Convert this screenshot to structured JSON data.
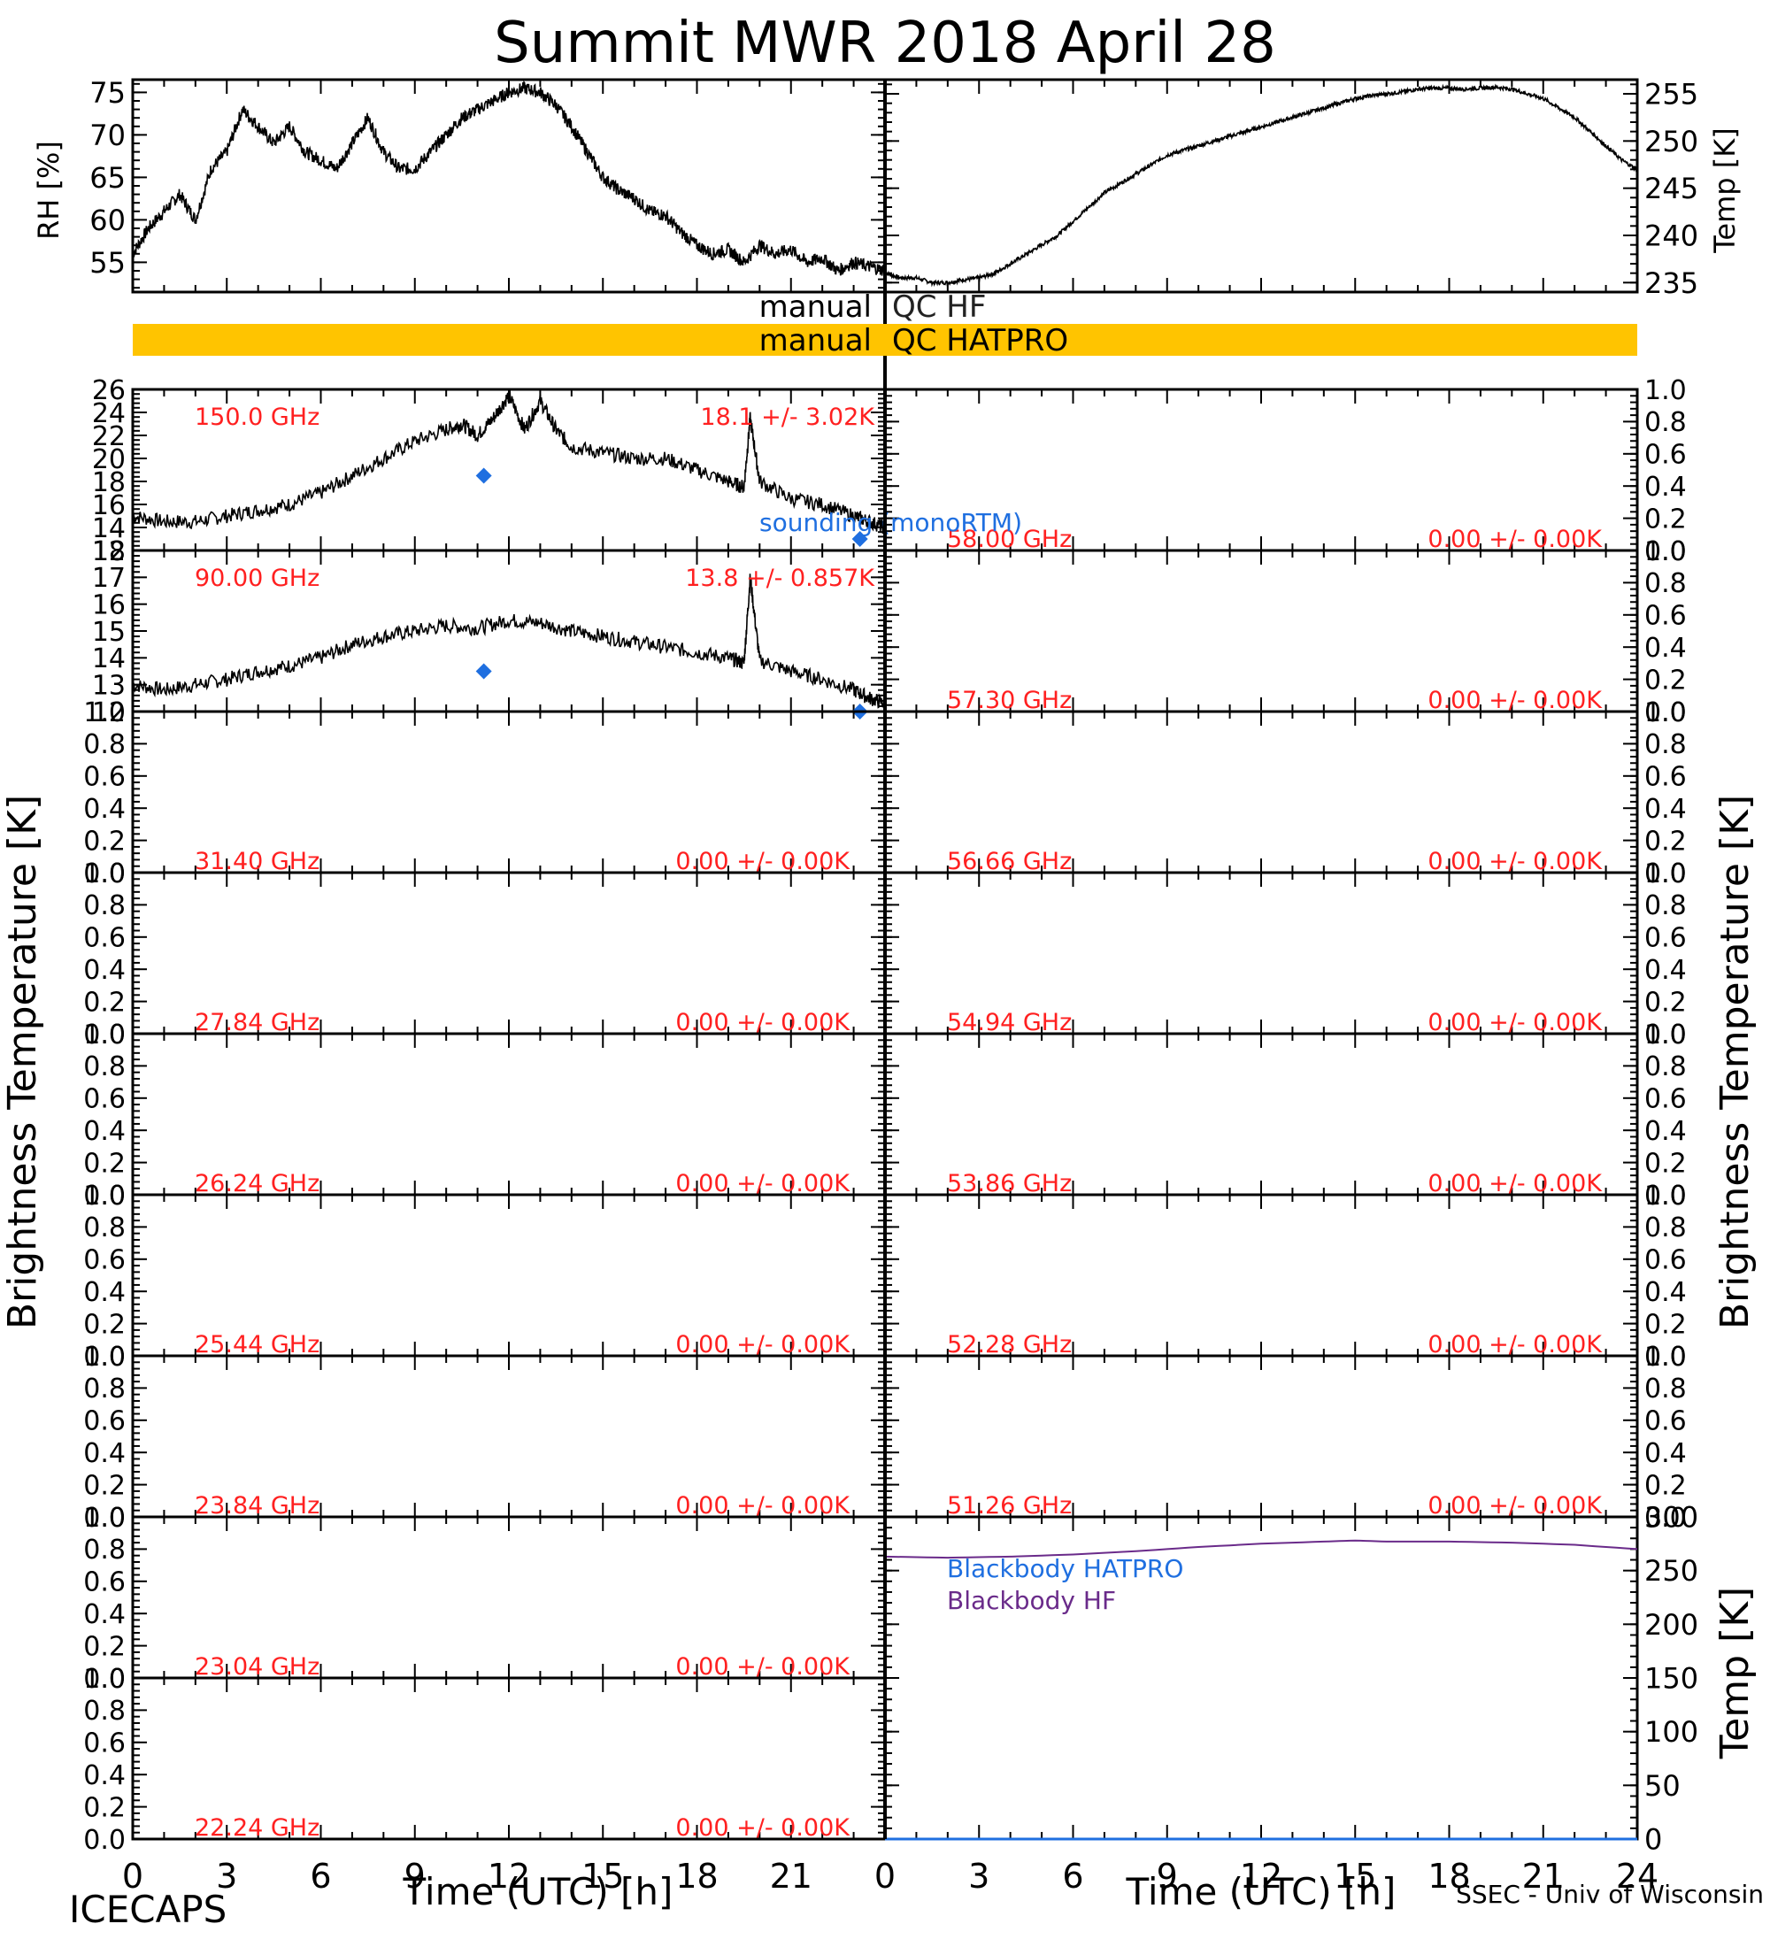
{
  "title": "Summit MWR 2018 April 28",
  "footer": {
    "left": "ICECAPS",
    "right": "SSEC - Univ of Wisconsin",
    "xlabel_left": "Time (UTC) [h]",
    "xlabel_right": "Time (UTC) [h]"
  },
  "axis_labels": {
    "rh": "RH [%]",
    "temp": "Temp [K]",
    "tb_left": "Brightness Temperature [K]",
    "tb_right": "Brightness Temperature [K]",
    "bb_temp": "Temp [K]"
  },
  "qc": {
    "hf_label": "manual QC HF",
    "hatpro_label": "manual QC HATPRO",
    "hatpro_color": "#ffc400"
  },
  "legend": {
    "sounding": "sounding (monoRTM)",
    "bb_hatpro": "Blackbody HATPRO",
    "bb_hf": "Blackbody HF"
  },
  "colors": {
    "label_red": "#ff2020",
    "sounding_blue": "#1f6fe0",
    "bb_purple": "#6a2b8a",
    "bb_blue": "#1f6fe0"
  },
  "chart_data": [
    {
      "type": "line",
      "panel": "rh",
      "xlim": [
        0,
        24
      ],
      "ylim": [
        51.5,
        76.5
      ],
      "yticks": [
        55,
        60,
        65,
        70,
        75
      ],
      "x": [
        0,
        0.5,
        1,
        1.5,
        2,
        2.5,
        3,
        3.5,
        4,
        4.5,
        5,
        5.5,
        6,
        6.5,
        7,
        7.5,
        8,
        8.5,
        9,
        9.5,
        10,
        10.5,
        11,
        11.5,
        12,
        12.5,
        13,
        13.5,
        14,
        14.5,
        15,
        15.5,
        16,
        16.5,
        17,
        17.5,
        18,
        18.5,
        19,
        19.5,
        20,
        20.5,
        21,
        21.5,
        22,
        22.5,
        23,
        23.5,
        24
      ],
      "values": [
        56,
        59,
        61,
        63,
        60,
        66,
        68,
        73,
        71,
        69,
        71,
        68,
        67,
        66,
        69,
        72,
        68,
        66,
        66,
        68,
        70,
        72,
        73,
        74,
        75,
        75.5,
        75,
        73.5,
        71,
        68,
        65,
        63.5,
        62.5,
        61,
        60.5,
        58.5,
        57,
        56,
        56.5,
        55,
        57,
        56,
        56.5,
        55,
        55.5,
        54,
        55,
        54.5,
        54
      ]
    },
    {
      "type": "line",
      "panel": "temp",
      "xlim": [
        0,
        24
      ],
      "ylim": [
        234,
        256.5
      ],
      "yticks": [
        235,
        240,
        245,
        250,
        255
      ],
      "x": [
        0,
        0.5,
        1,
        1.5,
        2,
        2.5,
        3,
        3.5,
        4,
        4.5,
        5,
        5.5,
        6,
        6.5,
        7,
        7.5,
        8,
        8.5,
        9,
        9.5,
        10,
        10.5,
        11,
        11.5,
        12,
        12.5,
        13,
        13.5,
        14,
        14.5,
        15,
        15.5,
        16,
        16.5,
        17,
        17.5,
        18,
        18.5,
        19,
        19.5,
        20,
        20.5,
        21,
        21.5,
        22,
        22.5,
        23,
        23.5,
        24
      ],
      "values": [
        236,
        235.5,
        235.5,
        235,
        235,
        235.3,
        235.5,
        236,
        237,
        238,
        239,
        240,
        241.5,
        243,
        244.5,
        245.5,
        246.5,
        247.5,
        248.5,
        249,
        249.5,
        250,
        250.5,
        251,
        251.5,
        252,
        252.5,
        253,
        253.5,
        254,
        254.5,
        254.8,
        255,
        255.2,
        255.5,
        255.6,
        255.6,
        255.5,
        255.6,
        255.7,
        255.5,
        255,
        254.5,
        253.5,
        252.5,
        251,
        249.5,
        248,
        247
      ]
    },
    {
      "type": "line",
      "panel": "tb",
      "freq_label": "150.0 GHz",
      "stat_label": "18.1 +/- 3.02K",
      "ylim": [
        12,
        26
      ],
      "yticks": [
        12,
        14,
        16,
        18,
        20,
        22,
        24,
        26
      ],
      "x": [
        0,
        1,
        2,
        3,
        4,
        5,
        6,
        7,
        8,
        9,
        10,
        10.5,
        11,
        11.5,
        12,
        12.5,
        13,
        13.5,
        14,
        15,
        16,
        17,
        18,
        19,
        19.5,
        19.7,
        20,
        21,
        22,
        23,
        23.5,
        24
      ],
      "values": [
        15,
        14.5,
        14.5,
        15,
        15.5,
        16,
        17,
        18.5,
        20,
        21.5,
        22.5,
        23,
        22,
        23.5,
        25.5,
        22.5,
        25,
        22.5,
        21,
        20.5,
        20,
        20,
        19,
        18,
        17.5,
        23.5,
        18,
        16.5,
        16,
        15,
        14.5,
        14
      ],
      "sounding": [
        {
          "x": 11.2,
          "y": 18.5
        },
        {
          "x": 23.2,
          "y": 13
        }
      ]
    },
    {
      "type": "line",
      "panel": "tb",
      "freq_label": "90.00 GHz",
      "stat_label": "13.8 +/- 0.857K",
      "ylim": [
        12,
        18
      ],
      "yticks": [
        12,
        13,
        14,
        15,
        16,
        17,
        18
      ],
      "x": [
        0,
        1,
        2,
        3,
        4,
        5,
        6,
        7,
        8,
        9,
        10,
        11,
        12,
        13,
        14,
        15,
        16,
        17,
        18,
        19,
        19.5,
        19.7,
        20,
        21,
        22,
        23,
        23.5,
        24
      ],
      "values": [
        13,
        12.8,
        13,
        13.2,
        13.5,
        13.7,
        14,
        14.5,
        14.8,
        15,
        15.2,
        15.1,
        15.4,
        15.3,
        15,
        14.8,
        14.6,
        14.4,
        14.2,
        14,
        13.8,
        17,
        13.9,
        13.5,
        13.2,
        12.8,
        12.5,
        12.3
      ],
      "sounding": [
        {
          "x": 11.2,
          "y": 13.5
        },
        {
          "x": 23.2,
          "y": 12
        }
      ]
    },
    {
      "type": "line",
      "panel": "tb",
      "freq_label": "31.40 GHz",
      "stat_label": "0.00 +/- 0.00K",
      "ylim": [
        0,
        1
      ],
      "x": [],
      "values": []
    },
    {
      "type": "line",
      "panel": "tb",
      "freq_label": "27.84 GHz",
      "stat_label": "0.00 +/- 0.00K",
      "ylim": [
        0,
        1
      ],
      "x": [],
      "values": []
    },
    {
      "type": "line",
      "panel": "tb",
      "freq_label": "26.24 GHz",
      "stat_label": "0.00 +/- 0.00K",
      "ylim": [
        0,
        1
      ],
      "x": [],
      "values": []
    },
    {
      "type": "line",
      "panel": "tb",
      "freq_label": "25.44 GHz",
      "stat_label": "0.00 +/- 0.00K",
      "ylim": [
        0,
        1
      ],
      "x": [],
      "values": []
    },
    {
      "type": "line",
      "panel": "tb",
      "freq_label": "23.84 GHz",
      "stat_label": "0.00 +/- 0.00K",
      "ylim": [
        0,
        1
      ],
      "x": [],
      "values": []
    },
    {
      "type": "line",
      "panel": "tb",
      "freq_label": "23.04 GHz",
      "stat_label": "0.00 +/- 0.00K",
      "ylim": [
        0,
        1
      ],
      "x": [],
      "values": []
    },
    {
      "type": "line",
      "panel": "tb",
      "freq_label": "22.24 GHz",
      "stat_label": "0.00 +/- 0.00K",
      "ylim": [
        0,
        1
      ],
      "x": [],
      "values": []
    },
    {
      "type": "line",
      "panel": "tb",
      "freq_label": "58.00 GHz",
      "stat_label": "0.00 +/- 0.00K",
      "ylim": [
        0,
        1
      ],
      "x": [],
      "values": []
    },
    {
      "type": "line",
      "panel": "tb",
      "freq_label": "57.30 GHz",
      "stat_label": "0.00 +/- 0.00K",
      "ylim": [
        0,
        1
      ],
      "x": [],
      "values": []
    },
    {
      "type": "line",
      "panel": "tb",
      "freq_label": "56.66 GHz",
      "stat_label": "0.00 +/- 0.00K",
      "ylim": [
        0,
        1
      ],
      "x": [],
      "values": []
    },
    {
      "type": "line",
      "panel": "tb",
      "freq_label": "54.94 GHz",
      "stat_label": "0.00 +/- 0.00K",
      "ylim": [
        0,
        1
      ],
      "x": [],
      "values": []
    },
    {
      "type": "line",
      "panel": "tb",
      "freq_label": "53.86 GHz",
      "stat_label": "0.00 +/- 0.00K",
      "ylim": [
        0,
        1
      ],
      "x": [],
      "values": []
    },
    {
      "type": "line",
      "panel": "tb",
      "freq_label": "52.28 GHz",
      "stat_label": "0.00 +/- 0.00K",
      "ylim": [
        0,
        1
      ],
      "x": [],
      "values": []
    },
    {
      "type": "line",
      "panel": "tb",
      "freq_label": "51.26 GHz",
      "stat_label": "0.00 +/- 0.00K",
      "ylim": [
        0,
        1
      ],
      "x": [],
      "values": []
    },
    {
      "type": "line",
      "panel": "blackbody",
      "xlim": [
        0,
        24
      ],
      "ylim": [
        0,
        300
      ],
      "yticks": [
        0,
        50,
        100,
        150,
        200,
        250,
        300
      ],
      "series": [
        {
          "name": "Blackbody HF",
          "x": [
            0,
            2,
            4,
            6,
            8,
            10,
            12,
            14,
            15,
            16,
            18,
            20,
            22,
            24
          ],
          "values": [
            263,
            262,
            263,
            265,
            268,
            272,
            275,
            277,
            278,
            277,
            277,
            276,
            274,
            270
          ]
        },
        {
          "name": "Blackbody HATPRO",
          "x": [
            0,
            24
          ],
          "values": [
            0,
            0
          ]
        }
      ]
    }
  ],
  "xticks": [
    0,
    3,
    6,
    9,
    12,
    15,
    18,
    21,
    24
  ],
  "xtick_labels_left": [
    "0",
    "3",
    "6",
    "9",
    "12",
    "15",
    "18",
    "21"
  ],
  "xtick_labels_right": [
    "0",
    "3",
    "6",
    "9",
    "12",
    "15",
    "18",
    "21",
    "24"
  ]
}
